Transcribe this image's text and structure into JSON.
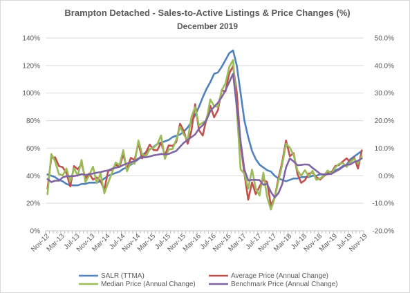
{
  "chart_data": {
    "type": "line",
    "title": "Brampton Detached - Sales-to-Active Listings & Price Changes (%)",
    "subtitle": "December 2019",
    "x_tick_labels": [
      "Nov-12",
      "Mar-13",
      "Jul-13",
      "Nov-13",
      "Mar-14",
      "Jul-14",
      "Nov-14",
      "Mar-15",
      "Jul-15",
      "Nov-15",
      "Mar-16",
      "Jul-16",
      "Nov-16",
      "Mar-17",
      "Jul-17",
      "Nov-17",
      "Mar-18",
      "Jul-18",
      "Nov-18",
      "Mar-19",
      "Jul-19",
      "Nov-19"
    ],
    "y_left": {
      "min": 0,
      "max": 140,
      "step": 20,
      "tick_labels": [
        "0%",
        "20%",
        "40%",
        "60%",
        "80%",
        "100%",
        "120%",
        "140%"
      ]
    },
    "y_right": {
      "min": -20,
      "max": 50,
      "step": 10,
      "tick_labels": [
        "-20.0%",
        "-10.0%",
        "0.0%",
        "10.0%",
        "20.0%",
        "30.0%",
        "40.0%",
        "50.0%"
      ]
    },
    "grid": true,
    "legend_position": "bottom",
    "series": [
      {
        "name": "SALR (TTMA)",
        "axis": "left",
        "color": "#4f81bd",
        "values": [
          41,
          40,
          39,
          37,
          36,
          34,
          33,
          33,
          33,
          34,
          34,
          35,
          35,
          35,
          36,
          38,
          40,
          41,
          42,
          43,
          45,
          46,
          48,
          50,
          52,
          55,
          57,
          59,
          61,
          63,
          64,
          65,
          66,
          68,
          69,
          70,
          72,
          75,
          79,
          84,
          90,
          97,
          103,
          108,
          114,
          115,
          119,
          124,
          129,
          131,
          120,
          100,
          80,
          68,
          58,
          52,
          48,
          46,
          44,
          43,
          40,
          38,
          37,
          36,
          37,
          38,
          38,
          39,
          39,
          39,
          40,
          40,
          41,
          41,
          42,
          43,
          44,
          45,
          47,
          48,
          52,
          54,
          56,
          58
        ]
      },
      {
        "name": "Average Price (Annual Change)",
        "axis": "right",
        "color": "#c0504d",
        "values": [
          -4.7,
          6.5,
          6.7,
          3.5,
          3.1,
          0.9,
          -3.9,
          3.5,
          2.3,
          4.4,
          -1.0,
          0.8,
          -1.4,
          -0.6,
          -1.9,
          -5.1,
          1.7,
          2.2,
          4.0,
          3.2,
          7.8,
          2.4,
          6.5,
          5.7,
          11.9,
          6.3,
          8.5,
          11.3,
          9.3,
          9.2,
          12.1,
          7.4,
          11.0,
          10.8,
          12.2,
          18.9,
          16.2,
          11.6,
          16.2,
          26.0,
          16.5,
          14.6,
          20.8,
          25.4,
          21.2,
          23.8,
          31.0,
          30.6,
          37.2,
          39.8,
          30.2,
          11.3,
          0.7,
          -8.7,
          -2.4,
          -6.7,
          -3.9,
          -1.4,
          -2.3,
          -10.8,
          -7.9,
          -0.8,
          5.1,
          12.8,
          7.1,
          8.2,
          0.7,
          -2.6,
          -1.6,
          0.8,
          1.1,
          -0.5,
          -1.4,
          -0.1,
          0.9,
          1.2,
          3.5,
          3.9,
          5.2,
          6.3,
          4.9,
          6.6,
          2.6,
          9.2
        ]
      },
      {
        "name": "Median Price (Annual Change)",
        "axis": "right",
        "color": "#9bbb59",
        "values": [
          -6.7,
          7.9,
          5.2,
          0.6,
          0.1,
          2.6,
          -2.1,
          2.7,
          0.0,
          5.7,
          -2.4,
          0.1,
          3.3,
          -2.7,
          0.8,
          -6.4,
          -2.6,
          0.9,
          4.8,
          3.8,
          9.3,
          1.6,
          4.9,
          4.3,
          12.8,
          7.8,
          7.1,
          9.6,
          10.2,
          11.4,
          14.6,
          6.1,
          9.5,
          9.7,
          13.1,
          17.8,
          14.9,
          12.9,
          21.3,
          24.9,
          18.3,
          19.3,
          20.1,
          27.7,
          25.3,
          25.0,
          31.0,
          33.5,
          39.5,
          42.0,
          24.0,
          2.3,
          0.8,
          -4.7,
          2.2,
          -4.6,
          -7.2,
          1.1,
          -7.8,
          -12.3,
          -8.1,
          -1.8,
          4.1,
          11.6,
          10.2,
          7.5,
          1.9,
          0.0,
          2.0,
          -0.2,
          1.8,
          -1.5,
          -1.0,
          0.1,
          1.9,
          0.7,
          3.0,
          4.3,
          4.6,
          3.2,
          5.0,
          6.1,
          4.5,
          7.1
        ]
      },
      {
        "name": "Benchmark Price (Annual Change)",
        "axis": "right",
        "color": "#8064a2",
        "values": [
          -1.2,
          -2.3,
          -1.8,
          -1.8,
          -0.6,
          -0.2,
          -0.2,
          -0.1,
          0.1,
          0.6,
          0.3,
          0.5,
          0.8,
          1.1,
          1.3,
          1.7,
          1.9,
          2.5,
          2.9,
          3.2,
          3.9,
          4.4,
          4.9,
          5.3,
          6.3,
          6.6,
          6.7,
          7.0,
          7.4,
          7.6,
          7.9,
          7.8,
          7.9,
          8.5,
          9.0,
          10.5,
          12.0,
          13.0,
          14.0,
          15.0,
          17.1,
          18.3,
          20.2,
          23.5,
          25.0,
          26.5,
          28.5,
          31.0,
          34.0,
          37.0,
          25.0,
          12.5,
          2.2,
          -1.7,
          -1.5,
          -1.5,
          -1.6,
          -3.3,
          -3.0,
          -5.9,
          -7.9,
          -6.3,
          -3.0,
          3.0,
          6.3,
          5.2,
          3.8,
          3.9,
          4.1,
          4.0,
          2.8,
          1.8,
          0.7,
          0.4,
          0.6,
          0.7,
          1.5,
          2.2,
          3.2,
          4.0,
          4.1,
          5.0,
          5.4,
          6.3
        ]
      }
    ]
  }
}
